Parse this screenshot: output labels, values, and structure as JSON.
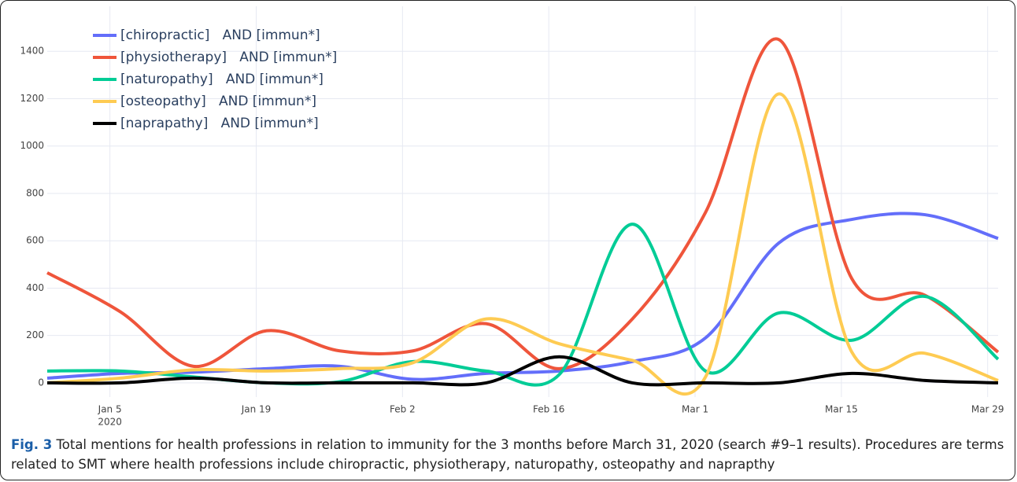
{
  "chart_data": {
    "type": "line",
    "x": [
      "2019-12-30",
      "2020-01-06",
      "2020-01-13",
      "2020-01-20",
      "2020-01-27",
      "2020-02-03",
      "2020-02-10",
      "2020-02-17",
      "2020-02-24",
      "2020-03-02",
      "2020-03-09",
      "2020-03-16",
      "2020-03-23",
      "2020-03-30"
    ],
    "series": [
      {
        "name": "[chiropractic]   AND [immun*]",
        "color": "#636efa",
        "values": [
          20,
          40,
          45,
          60,
          70,
          15,
          40,
          50,
          90,
          190,
          590,
          690,
          710,
          610
        ]
      },
      {
        "name": "[physiotherapy]   AND [immun*]",
        "color": "#ef553b",
        "values": [
          465,
          300,
          70,
          220,
          135,
          135,
          250,
          60,
          270,
          720,
          1450,
          440,
          370,
          130
        ]
      },
      {
        "name": "[naturopathy]   AND [immun*]",
        "color": "#00cc96",
        "values": [
          50,
          50,
          25,
          0,
          5,
          90,
          50,
          35,
          670,
          50,
          295,
          180,
          365,
          100
        ]
      },
      {
        "name": "[osteopathy]   AND [immun*]",
        "color": "#fecb52",
        "values": [
          0,
          20,
          55,
          50,
          60,
          85,
          270,
          165,
          95,
          25,
          1220,
          130,
          125,
          10
        ]
      },
      {
        "name": "[naprapathy]   AND [immun*]",
        "color": "#000000",
        "values": [
          0,
          0,
          20,
          0,
          0,
          0,
          0,
          110,
          0,
          0,
          0,
          40,
          10,
          0
        ]
      }
    ],
    "xlim": [
      "2019-12-30",
      "2020-03-30"
    ],
    "xticks": [
      {
        "value": "2020-01-05",
        "label": "Jan 5",
        "sublabel": "2020"
      },
      {
        "value": "2020-01-19",
        "label": "Jan 19"
      },
      {
        "value": "2020-02-02",
        "label": "Feb 2"
      },
      {
        "value": "2020-02-16",
        "label": "Feb 16"
      },
      {
        "value": "2020-03-01",
        "label": "Mar 1"
      },
      {
        "value": "2020-03-15",
        "label": "Mar 15"
      },
      {
        "value": "2020-03-29",
        "label": "Mar 29"
      }
    ],
    "ylim": [
      -60,
      1590
    ],
    "yticks": [
      0,
      200,
      400,
      600,
      800,
      1000,
      1200,
      1400
    ],
    "grid": true,
    "legend": "top-left"
  },
  "caption": {
    "label": "Fig. 3",
    "text": "Total mentions for health professions in relation to immunity for the 3 months before March 31, 2020 (search #9–1 results). Procedures are terms related to SMT where health professions include chiropractic, physiotherapy, naturopathy, osteopathy and naprapthy"
  }
}
